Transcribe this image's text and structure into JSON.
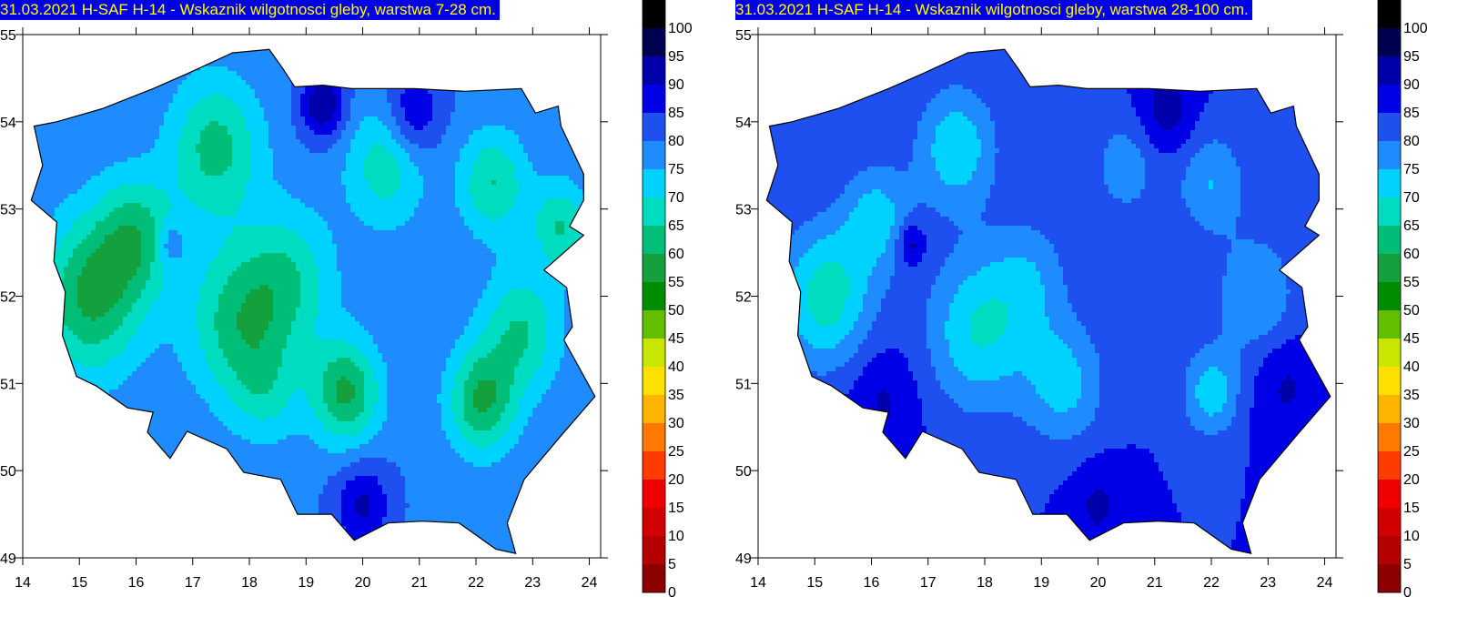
{
  "panels": [
    {
      "title": "31.03.2021 H-SAF H-14 - Wskaznik wilgotnosci gleby, warstwa 7-28 cm.",
      "layer": "7-28"
    },
    {
      "title": "31.03.2021 H-SAF H-14 - Wskaznik wilgotnosci gleby, warstwa 28-100 cm.",
      "layer": "28-100"
    }
  ],
  "axes": {
    "x_ticks": [
      "14",
      "15",
      "16",
      "17",
      "18",
      "19",
      "20",
      "21",
      "22",
      "23",
      "24"
    ],
    "y_ticks": [
      "55",
      "54",
      "53",
      "52",
      "51",
      "50",
      "49"
    ],
    "lon_range": [
      14,
      24.2
    ],
    "lat_range": [
      49,
      55
    ]
  },
  "colorbar": {
    "levels": [
      "100",
      "95",
      "90",
      "85",
      "80",
      "75",
      "70",
      "65",
      "60",
      "55",
      "50",
      "45",
      "40",
      "35",
      "30",
      "25",
      "20",
      "15",
      "10",
      "5",
      "0"
    ],
    "colors": [
      "#000000",
      "#000050",
      "#0000aa",
      "#0000e6",
      "#1e50f0",
      "#1e8cff",
      "#00d2ff",
      "#00dcc0",
      "#00be78",
      "#14a03c",
      "#008c00",
      "#64be00",
      "#c8e600",
      "#ffe100",
      "#ffb400",
      "#ff7800",
      "#ff3c00",
      "#f00000",
      "#d20000",
      "#b40000",
      "#8c0000"
    ]
  }
}
